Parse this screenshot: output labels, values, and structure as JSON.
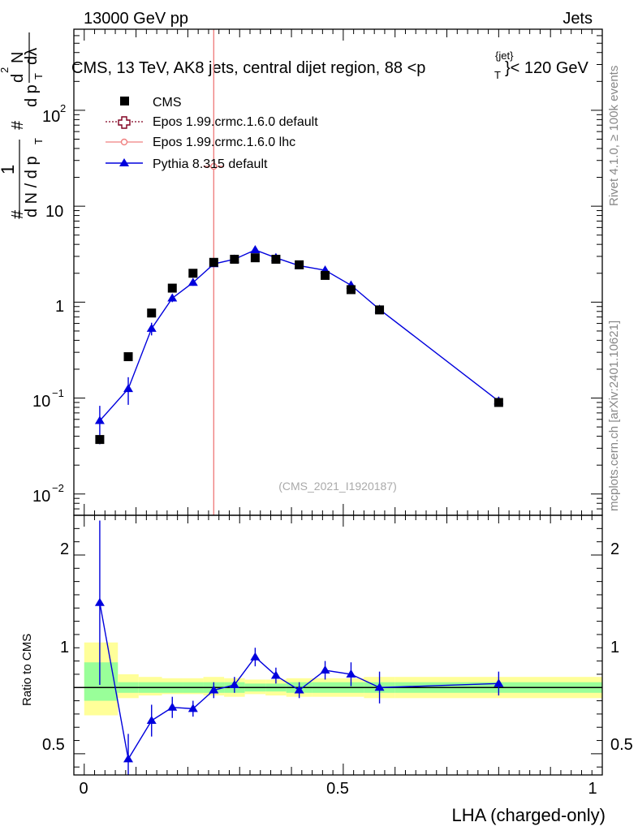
{
  "header": {
    "energy_label": "13000 GeV pp",
    "category_label": "Jets",
    "title": "CMS, 13 TeV, AK8 jets, central dijet region, 88 < p_T^{jet} < 120 GeV",
    "title_parts": [
      "CMS, 13 TeV, AK8 jets, central dijet region, 88 <p",
      "T",
      "{jet}",
      "}< 120 GeV"
    ],
    "side_rivet": "Rivet 4.1.0, ≥ 100k events",
    "side_mcplots": "mcplots.cern.ch [arXiv:2401.10621]",
    "analysis_id": "(CMS_2021_I1920187)"
  },
  "labels": {
    "y_main_parts": [
      "#",
      "1",
      "d N / d p",
      "T",
      "#",
      "d p",
      "T",
      "d",
      "2",
      "N",
      "dλ"
    ],
    "y_ratio": "Ratio to CMS",
    "x_axis": "LHA (charged-only)"
  },
  "ticks": {
    "main_y": [
      "10",
      "−2",
      "10",
      "−1",
      "1",
      "10",
      "10",
      "2"
    ],
    "ratio_y": [
      "2",
      "1",
      "0.5"
    ],
    "ratio_y_right": [
      "2",
      "1",
      "0.5"
    ],
    "x": [
      "0",
      "0.5",
      "1"
    ]
  },
  "colors": {
    "cms": "#000000",
    "epos_default": "#800020",
    "epos_lhc": "#f08080",
    "pythia": "#0000dd",
    "band_outer": "#ffff99",
    "band_inner": "#99ff99"
  },
  "chart_data": [
    {
      "type": "scatter",
      "panel": "main",
      "title": "CMS, 13 TeV, AK8 jets, central dijet region, 88 < p_T^{jet} < 120 GeV",
      "xlabel": "LHA (charged-only)",
      "ylabel": "1/(dN/dpT) d2N/(dpT dlambda)",
      "yscale": "log",
      "xlim": [
        -0.02,
        1.0
      ],
      "ylim": [
        0.006,
        700
      ],
      "legend_position": "top-left",
      "legend": [
        "CMS",
        "Epos 1.99.crmc.1.6.0 default",
        "Epos 1.99.crmc.1.6.0 lhc",
        "Pythia 8.315 default"
      ],
      "series": [
        {
          "name": "CMS",
          "marker": "square",
          "x": [
            0.03,
            0.085,
            0.13,
            0.17,
            0.21,
            0.25,
            0.29,
            0.33,
            0.37,
            0.415,
            0.465,
            0.515,
            0.57,
            0.8
          ],
          "y": [
            0.037,
            0.27,
            0.77,
            1.4,
            2.0,
            2.6,
            2.8,
            2.9,
            2.8,
            2.45,
            1.9,
            1.35,
            0.83,
            0.09
          ]
        },
        {
          "name": "Epos 1.99.crmc.1.6.0 default",
          "marker": "open-cross",
          "x": [],
          "y": []
        },
        {
          "name": "Epos 1.99.crmc.1.6.0 lhc",
          "marker": "open-circle",
          "x": [
            0.25
          ],
          "y": [
            26
          ],
          "yerr_low": [
            25.995
          ],
          "yerr_high": [
            500
          ],
          "xerr": [
            0.02
          ]
        },
        {
          "name": "Pythia 8.315 default",
          "marker": "triangle",
          "x": [
            0.03,
            0.085,
            0.13,
            0.17,
            0.21,
            0.25,
            0.29,
            0.33,
            0.37,
            0.415,
            0.465,
            0.515,
            0.57,
            0.8
          ],
          "y": [
            0.058,
            0.125,
            0.53,
            1.1,
            1.6,
            2.5,
            2.8,
            3.5,
            2.9,
            2.4,
            2.15,
            1.5,
            0.84,
            0.093
          ],
          "yerr": [
            0.025,
            0.04,
            0.08,
            0.1,
            0.12,
            0.15,
            0.15,
            0.2,
            0.15,
            0.13,
            0.13,
            0.12,
            0.07,
            0.01
          ]
        }
      ]
    },
    {
      "type": "line",
      "panel": "ratio",
      "ylabel": "Ratio to CMS",
      "xlabel": "LHA (charged-only)",
      "xlim": [
        -0.02,
        1.0
      ],
      "ylim": [
        0.34,
        2.3
      ],
      "reference_line": 1,
      "band_edges": [
        0.0,
        0.065,
        0.105,
        0.15,
        0.19,
        0.23,
        0.27,
        0.31,
        0.35,
        0.39,
        0.44,
        0.49,
        0.54,
        0.6,
        1.0
      ],
      "band_outer": [
        [
          0.79,
          1.34
        ],
        [
          0.92,
          1.1
        ],
        [
          0.94,
          1.08
        ],
        [
          0.95,
          1.07
        ],
        [
          0.95,
          1.07
        ],
        [
          0.94,
          1.08
        ],
        [
          0.93,
          1.07
        ],
        [
          0.95,
          1.06
        ],
        [
          0.94,
          1.06
        ],
        [
          0.93,
          1.07
        ],
        [
          0.93,
          1.07
        ],
        [
          0.93,
          1.07
        ],
        [
          0.92,
          1.08
        ],
        [
          0.92,
          1.08
        ]
      ],
      "band_inner": [
        [
          0.9,
          1.19
        ],
        [
          0.96,
          1.04
        ],
        [
          0.96,
          1.04
        ],
        [
          0.96,
          1.04
        ],
        [
          0.96,
          1.04
        ],
        [
          0.96,
          1.04
        ],
        [
          0.96,
          1.04
        ],
        [
          0.97,
          1.03
        ],
        [
          0.97,
          1.03
        ],
        [
          0.96,
          1.04
        ],
        [
          0.96,
          1.04
        ],
        [
          0.96,
          1.04
        ],
        [
          0.96,
          1.04
        ],
        [
          0.96,
          1.04
        ]
      ],
      "series": [
        {
          "name": "Pythia 8.315 default",
          "x": [
            0.03,
            0.085,
            0.13,
            0.17,
            0.21,
            0.25,
            0.29,
            0.33,
            0.37,
            0.415,
            0.465,
            0.515,
            0.57,
            0.8
          ],
          "y": [
            1.64,
            0.46,
            0.75,
            0.85,
            0.84,
            0.98,
            1.02,
            1.23,
            1.09,
            0.98,
            1.13,
            1.1,
            1.0,
            1.03
          ],
          "yerr": [
            0.62,
            0.19,
            0.12,
            0.08,
            0.06,
            0.06,
            0.06,
            0.07,
            0.06,
            0.06,
            0.07,
            0.09,
            0.12,
            0.09
          ]
        }
      ]
    }
  ]
}
